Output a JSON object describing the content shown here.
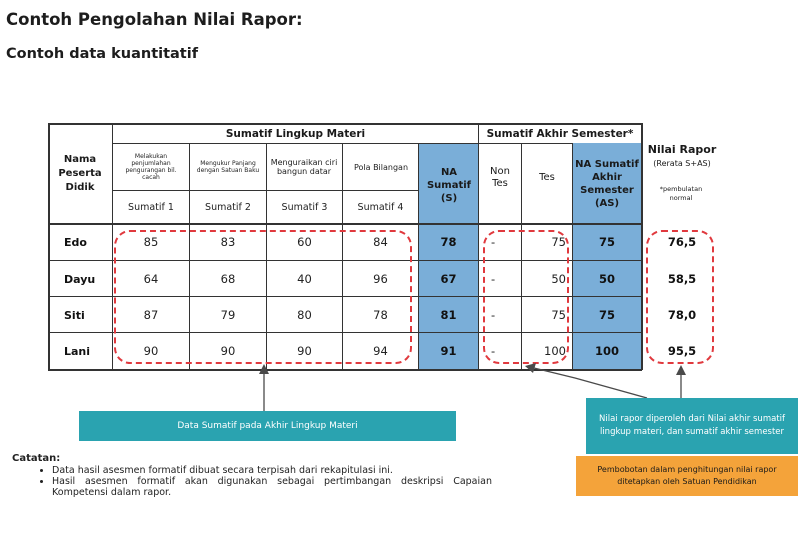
{
  "title": "Contoh Pengolahan Nilai Rapor:",
  "subtitle": "Contoh data kuantitatif",
  "table": {
    "col_name_header": "Nama Peserta Didik",
    "group_materi": "Sumatif Lingkup Materi",
    "group_akhir": "Sumatif Akhir Semester*",
    "col_rapor_title": "Nilai Rapor",
    "col_rapor_sub": "(Rerata S+AS)",
    "col_rapor_note": "*pembulatan normal",
    "materi_desc": [
      "Melakukan penjumlahan pengurangan bil. cacah",
      "Mengukur Panjang dengan Satuan Baku",
      "Menguraikan ciri bangun datar",
      "Pola Bilangan"
    ],
    "materi_labels": [
      "Sumatif 1",
      "Sumatif 2",
      "Sumatif 3",
      "Sumatif 4"
    ],
    "na_s": "NA Sumatif (S)",
    "non_tes": "Non Tes",
    "tes": "Tes",
    "na_as": "NA Sumatif Akhir Semester (AS)",
    "rows": [
      {
        "name": "Edo",
        "s1": "85",
        "s2": "83",
        "s3": "60",
        "s4": "84",
        "na_s": "78",
        "non_tes": "-",
        "tes": "75",
        "na_as": "75",
        "rapor": "76,5"
      },
      {
        "name": "Dayu",
        "s1": "64",
        "s2": "68",
        "s3": "40",
        "s4": "96",
        "na_s": "67",
        "non_tes": "-",
        "tes": "50",
        "na_as": "50",
        "rapor": "58,5"
      },
      {
        "name": "Siti",
        "s1": "87",
        "s2": "79",
        "s3": "80",
        "s4": "78",
        "na_s": "81",
        "non_tes": "-",
        "tes": "75",
        "na_as": "75",
        "rapor": "78,0"
      },
      {
        "name": "Lani",
        "s1": "90",
        "s2": "90",
        "s3": "90",
        "s4": "94",
        "na_s": "91",
        "non_tes": "-",
        "tes": "100",
        "na_as": "100",
        "rapor": "95,5"
      }
    ]
  },
  "callouts": {
    "data_sumatif": "Data Sumatif pada Akhir Lingkup Materi",
    "nilai_rapor": "Nilai rapor diperoleh dari Nilai akhir sumatif lingkup materi, dan sumatif akhir semester",
    "pembobotan": "Pembobotan dalam penghitungan nilai rapor ditetapkan oleh Satuan Pendidikan"
  },
  "notes": {
    "title": "Catatan:",
    "items": [
      "Data hasil asesmen formatif dibuat secara terpisah dari rekapitulasi ini.",
      "Hasil asesmen formatif akan digunakan sebagai pertimbangan deskripsi Capaian Kompetensi dalam rapor."
    ]
  },
  "colors": {
    "header_blue": "#7aaed8",
    "dash_red": "#e0393e",
    "teal": "#2aa3b0",
    "orange": "#f4a33a"
  }
}
